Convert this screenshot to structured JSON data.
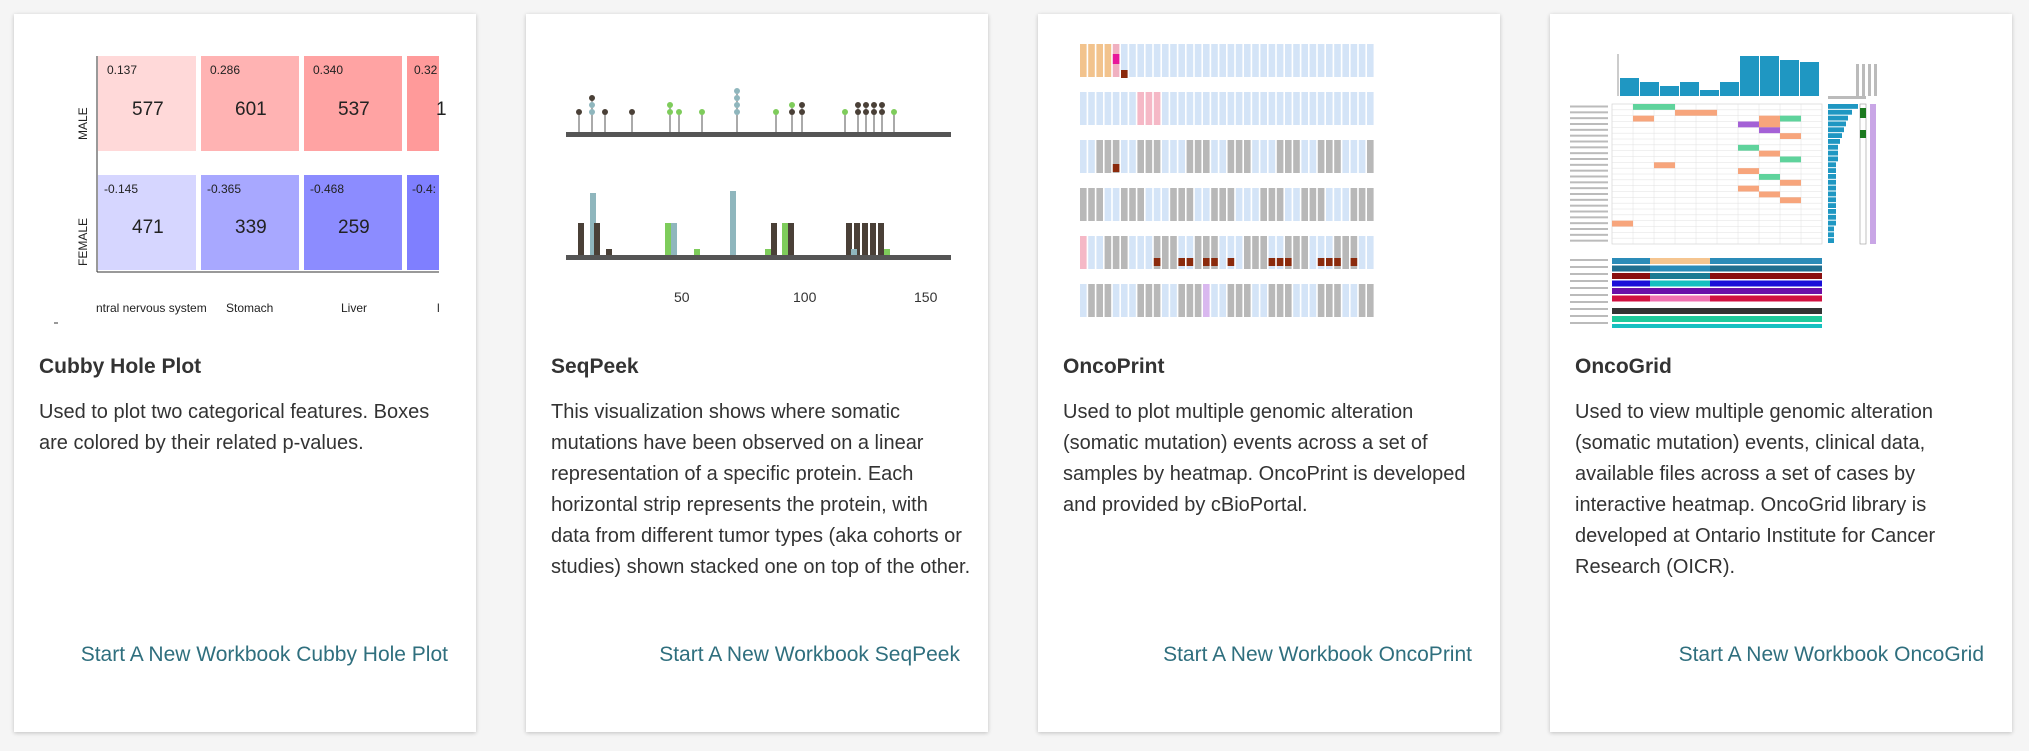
{
  "cards": [
    {
      "title": "Cubby Hole Plot",
      "description": "Used to plot two categorical features. Boxes are colored by their related p-values.",
      "link": "Start A New Workbook Cubby Hole Plot",
      "thumbnail": {
        "row_labels": [
          "MALE",
          "FEMALE"
        ],
        "col_labels": [
          "ntral nervous system",
          "Stomach",
          "Liver",
          "l"
        ],
        "male_pvals": [
          "0.137",
          "0.286",
          "0.340",
          "0.32"
        ],
        "male_counts": [
          "577",
          "601",
          "537",
          "1"
        ],
        "female_pvals": [
          "-0.145",
          "-0.365",
          "-0.468",
          "-0.4:"
        ],
        "female_counts": [
          "471",
          "339",
          "259",
          ""
        ]
      }
    },
    {
      "title": "SeqPeek",
      "description": "This visualization shows where somatic mutations have been observed on a linear representation of a specific protein. Each horizontal strip represents the protein, with data from different tumor types (aka cohorts or studies) shown stacked one on top of the other.",
      "link": "Start A New Workbook SeqPeek",
      "thumbnail": {
        "x_ticks": [
          "50",
          "100",
          "150"
        ]
      }
    },
    {
      "title": "OncoPrint",
      "description": "Used to plot multiple genomic alteration (somatic mutation) events across a set of samples by heatmap. OncoPrint is developed and provided by cBioPortal.",
      "link": "Start A New Workbook OncoPrint"
    },
    {
      "title": "OncoGrid",
      "description": "Used to view multiple genomic alteration (somatic mutation) events, clinical data, available files across a set of cases by interactive heatmap. OncoGrid library is developed at Ontario Institute for Cancer Research (OICR).",
      "link": "Start A New Workbook OncoGrid"
    }
  ],
  "colors": {
    "link": "#2f6f7e",
    "male_scale": [
      "#ffd9d9",
      "#ffb3b3",
      "#ffa3a3",
      "#ff9a9a"
    ],
    "female_scale": [
      "#d6d6ff",
      "#a8a8ff",
      "#8c8cff",
      "#7f7fff"
    ],
    "seqpeek_green": "#7ecc5b",
    "seqpeek_blue": "#8fb6bd",
    "seqpeek_dark": "#4a4037",
    "oncoprint_empty": "#d4e4f7",
    "oncoprint_gray": "#b8b8b8",
    "oncogrid_blue": "#1f97c2"
  }
}
